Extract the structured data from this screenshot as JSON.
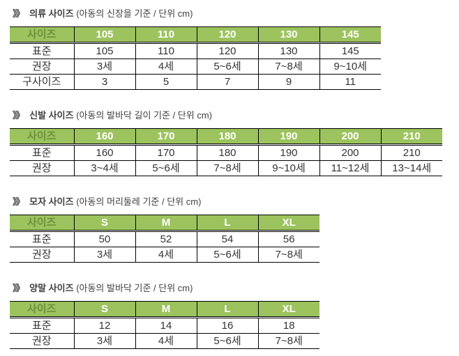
{
  "colors": {
    "header_bg": "#9cc35e",
    "header_label_text": "#6e8f3d",
    "header_value_text": "#ffffff",
    "body_text": "#333333",
    "border": "#000000",
    "title_text": "#3f3f3f"
  },
  "sections": [
    {
      "id": "clothing",
      "title": {
        "chevron": "》》",
        "name": "의류 사이즈",
        "desc": "(아동의 신장을 기준 / 단위 cm)"
      },
      "table": {
        "header": [
          "사이즈",
          "105",
          "110",
          "120",
          "130",
          "145"
        ],
        "rows": [
          [
            "표준",
            "105",
            "110",
            "120",
            "130",
            "145"
          ],
          [
            "권장",
            "3세",
            "4세",
            "5~6세",
            "7~8세",
            "9~10세"
          ],
          [
            "구사이즈",
            "3",
            "5",
            "7",
            "9",
            "11"
          ]
        ]
      }
    },
    {
      "id": "shoes",
      "title": {
        "chevron": "》》",
        "name": "신발 사이즈",
        "desc": "(아동의 발바닥 길이 기준 / 단위 cm)"
      },
      "table": {
        "header": [
          "사이즈",
          "160",
          "170",
          "180",
          "190",
          "200",
          "210"
        ],
        "rows": [
          [
            "표준",
            "160",
            "170",
            "180",
            "190",
            "200",
            "210"
          ],
          [
            "권장",
            "3~4세",
            "5~6세",
            "7~8세",
            "9~10세",
            "11~12세",
            "13~14세"
          ]
        ]
      }
    },
    {
      "id": "hat",
      "title": {
        "chevron": "》》",
        "name": "모자 사이즈",
        "desc": "(아동의 머리둘레 기준 / 단위 cm)"
      },
      "table": {
        "header": [
          "사이즈",
          "S",
          "M",
          "L",
          "XL"
        ],
        "rows": [
          [
            "표준",
            "50",
            "52",
            "54",
            "56"
          ],
          [
            "권장",
            "3세",
            "4세",
            "5~6세",
            "7~8세"
          ]
        ]
      }
    },
    {
      "id": "socks",
      "title": {
        "chevron": "》》",
        "name": "양말 사이즈",
        "desc": "(아동의 발바닥 기준 / 단위 cm)"
      },
      "table": {
        "header": [
          "사이즈",
          "S",
          "M",
          "L",
          "XL"
        ],
        "rows": [
          [
            "표준",
            "12",
            "14",
            "16",
            "18"
          ],
          [
            "권장",
            "3세",
            "4세",
            "5~6세",
            "7~8세"
          ]
        ]
      }
    }
  ]
}
